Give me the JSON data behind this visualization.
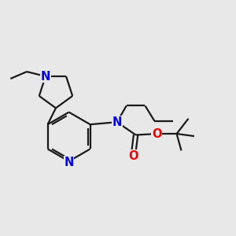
{
  "bg_color": "#e8e8e8",
  "bond_color": "#1a1a1a",
  "N_color": "#0000ee",
  "O_color": "#ee0000",
  "line_width": 1.6,
  "font_size": 10.5,
  "xlim": [
    0,
    10
  ],
  "ylim": [
    0,
    10
  ]
}
